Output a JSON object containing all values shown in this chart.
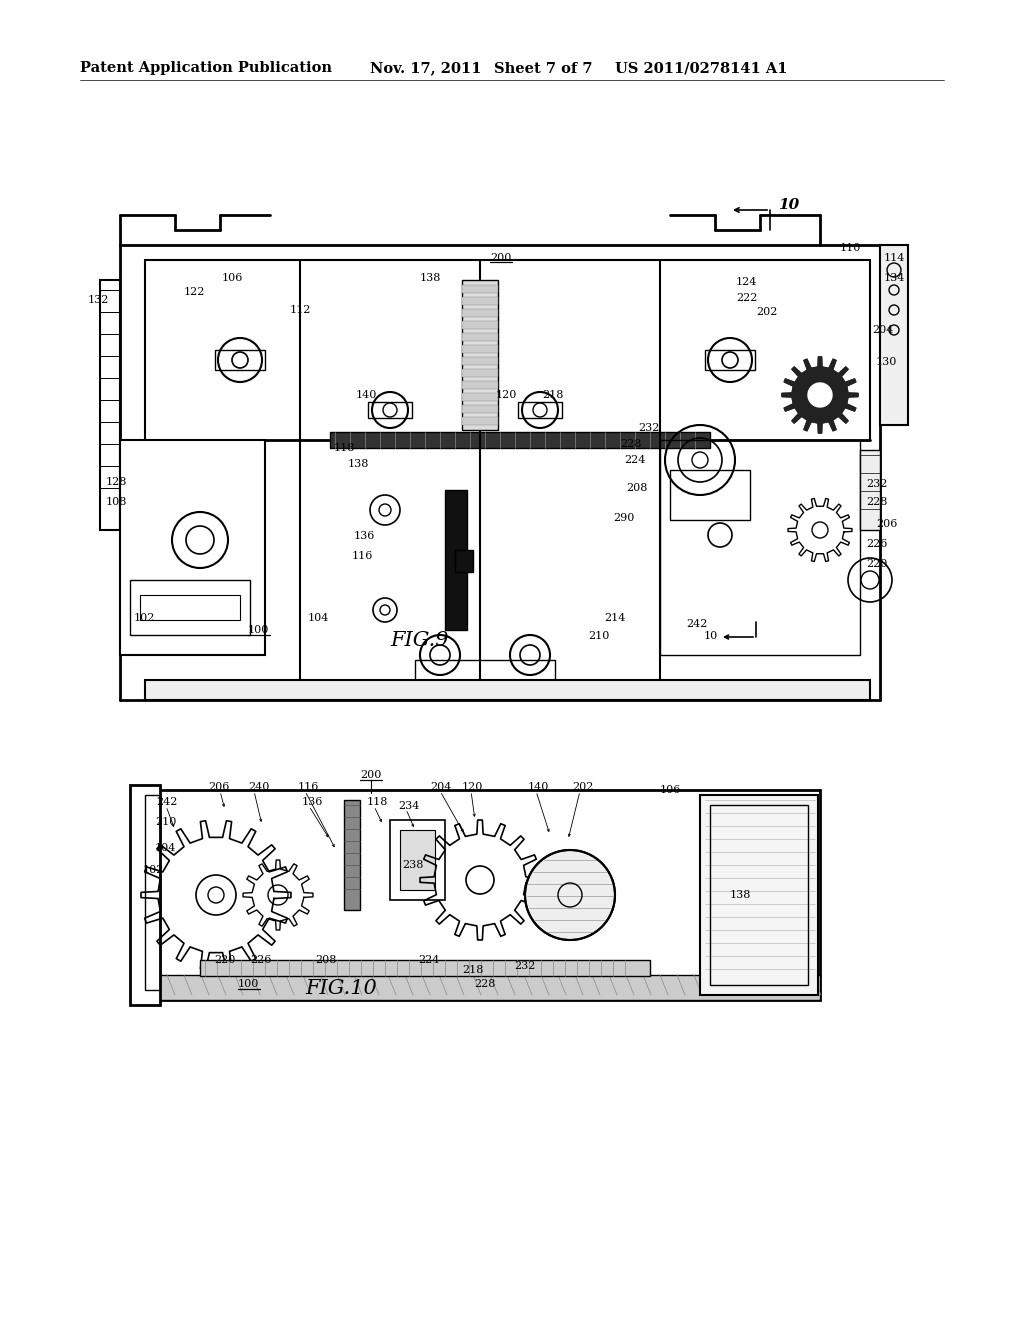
{
  "background_color": "#ffffff",
  "page_width": 10.24,
  "page_height": 13.2,
  "header": {
    "left_text": "Patent Application Publication",
    "center_text": "Nov. 17, 2011  Sheet 7 of 7",
    "right_text": "US 2011/0278141 A1",
    "fontsize": 10.5,
    "fontweight": "bold"
  },
  "fig9_title": "FIG.9",
  "fig10_title": "FIG.10",
  "ref10_label": "10"
}
